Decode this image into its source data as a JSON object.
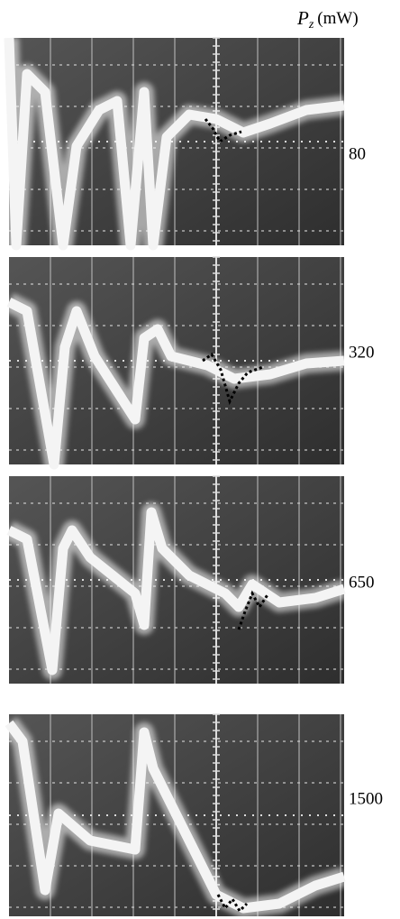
{
  "header": {
    "symbol": "P",
    "subscript": "z",
    "unit": "(mW)"
  },
  "panels": [
    {
      "label": "80"
    },
    {
      "label": "320"
    },
    {
      "label": "650"
    },
    {
      "label": "1500"
    }
  ]
}
